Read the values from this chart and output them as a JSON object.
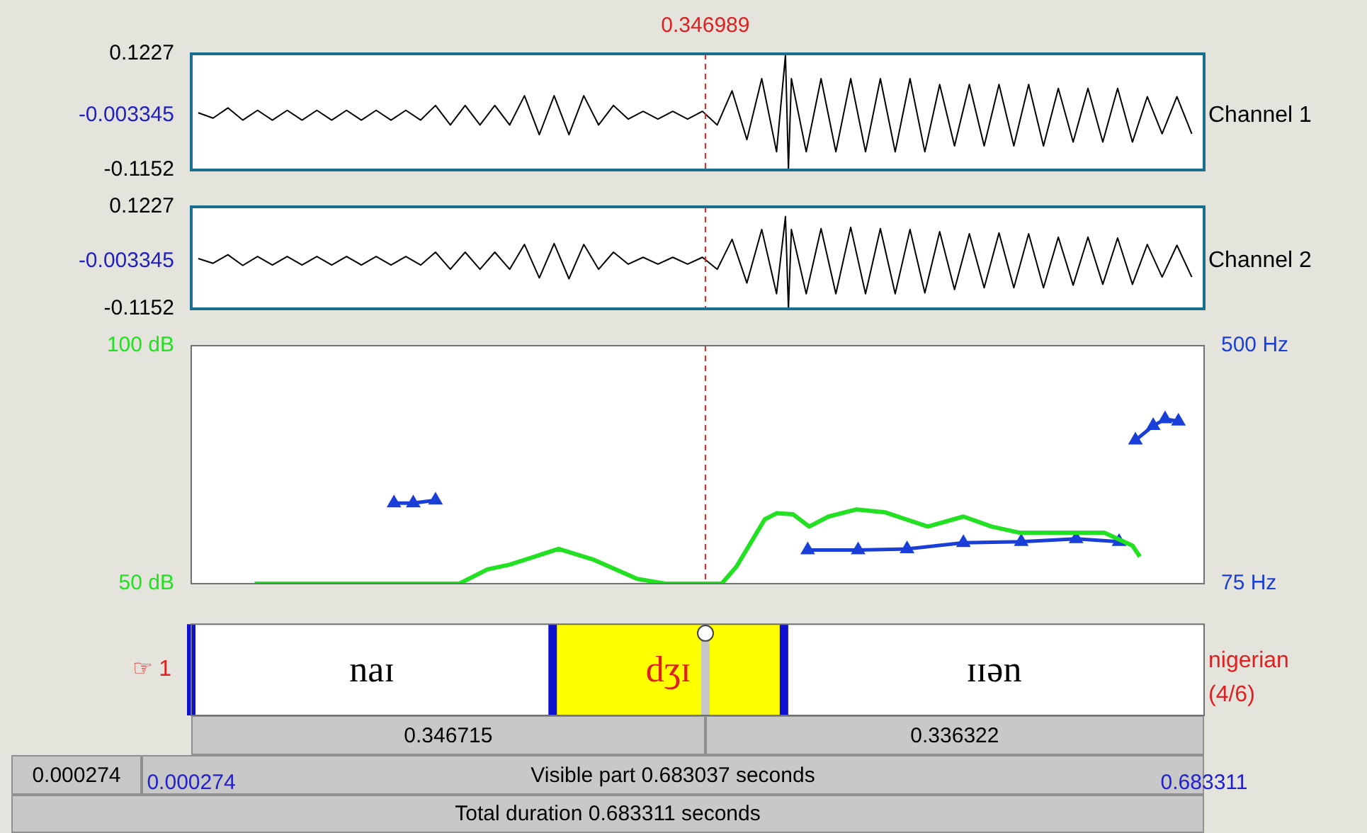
{
  "chart_data": [
    {
      "type": "line",
      "xlim": [
        0.000274,
        0.683311
      ],
      "ylim": [
        -0.1152,
        0.1227
      ],
      "yticks": [
        0.1227,
        -0.003345,
        -0.1152
      ],
      "tick_labels": "y",
      "ref_lines": [
        {
          "axis": "x",
          "value": 0.346989,
          "label": "0.346989",
          "color": "#e02020",
          "line_style": "dashed"
        }
      ],
      "series": [
        {
          "name": "Channel 1",
          "color": "#000000",
          "x": [
            0.005,
            0.015,
            0.025,
            0.035,
            0.045,
            0.055,
            0.065,
            0.075,
            0.085,
            0.095,
            0.105,
            0.115,
            0.125,
            0.135,
            0.145,
            0.155,
            0.165,
            0.175,
            0.185,
            0.195,
            0.205,
            0.215,
            0.225,
            0.235,
            0.245,
            0.255,
            0.265,
            0.275,
            0.285,
            0.295,
            0.305,
            0.315,
            0.325,
            0.335,
            0.345,
            0.355,
            0.365,
            0.375,
            0.385,
            0.395,
            0.401,
            0.403,
            0.405,
            0.415,
            0.425,
            0.435,
            0.445,
            0.455,
            0.465,
            0.475,
            0.485,
            0.495,
            0.505,
            0.515,
            0.525,
            0.535,
            0.545,
            0.555,
            0.565,
            0.575,
            0.585,
            0.595,
            0.605,
            0.615,
            0.625,
            0.635,
            0.645,
            0.655,
            0.665,
            0.675
          ],
          "values": [
            0.002,
            -0.009,
            0.012,
            -0.013,
            0.007,
            -0.013,
            0.007,
            -0.013,
            0.007,
            -0.013,
            0.007,
            -0.013,
            0.007,
            -0.013,
            0.007,
            -0.013,
            0.017,
            -0.023,
            0.017,
            -0.023,
            0.017,
            -0.023,
            0.037,
            -0.043,
            0.037,
            -0.043,
            0.037,
            -0.023,
            0.017,
            -0.011,
            0.005,
            -0.011,
            0.005,
            -0.011,
            0.005,
            -0.023,
            0.047,
            -0.053,
            0.072,
            -0.078,
            0.12,
            -0.113,
            0.072,
            -0.078,
            0.072,
            -0.078,
            0.072,
            -0.078,
            0.072,
            -0.078,
            0.072,
            -0.078,
            0.06,
            -0.066,
            0.06,
            -0.066,
            0.06,
            -0.066,
            0.06,
            -0.066,
            0.052,
            -0.058,
            0.052,
            -0.058,
            0.052,
            -0.058,
            0.035,
            -0.041,
            0.035,
            -0.041
          ]
        }
      ]
    },
    {
      "type": "line",
      "xlim": [
        0.000274,
        0.683311
      ],
      "ylim": [
        -0.1152,
        0.1227
      ],
      "yticks": [
        0.1227,
        -0.003345,
        -0.1152
      ],
      "tick_labels": "y",
      "ref_lines": [
        {
          "axis": "x",
          "value": 0.346989,
          "color": "#e02020",
          "line_style": "dashed"
        }
      ],
      "series": [
        {
          "name": "Channel 2",
          "color": "#000000",
          "x": [
            0.005,
            0.015,
            0.025,
            0.035,
            0.045,
            0.055,
            0.065,
            0.075,
            0.085,
            0.095,
            0.105,
            0.115,
            0.125,
            0.135,
            0.145,
            0.155,
            0.165,
            0.175,
            0.185,
            0.195,
            0.205,
            0.215,
            0.225,
            0.235,
            0.245,
            0.255,
            0.265,
            0.275,
            0.285,
            0.295,
            0.305,
            0.315,
            0.325,
            0.335,
            0.345,
            0.355,
            0.365,
            0.375,
            0.385,
            0.395,
            0.401,
            0.403,
            0.405,
            0.415,
            0.425,
            0.435,
            0.445,
            0.455,
            0.465,
            0.475,
            0.485,
            0.495,
            0.505,
            0.515,
            0.525,
            0.535,
            0.545,
            0.555,
            0.565,
            0.575,
            0.585,
            0.595,
            0.605,
            0.615,
            0.625,
            0.635,
            0.645,
            0.655,
            0.665,
            0.675
          ],
          "values": [
            0.002,
            -0.009,
            0.011,
            -0.014,
            0.007,
            -0.013,
            0.007,
            -0.013,
            0.007,
            -0.013,
            0.007,
            -0.013,
            0.007,
            -0.013,
            0.007,
            -0.013,
            0.017,
            -0.023,
            0.017,
            -0.023,
            0.017,
            -0.023,
            0.035,
            -0.043,
            0.037,
            -0.045,
            0.035,
            -0.023,
            0.017,
            -0.011,
            0.005,
            -0.011,
            0.005,
            -0.011,
            0.005,
            -0.023,
            0.047,
            -0.055,
            0.07,
            -0.08,
            0.1,
            -0.115,
            0.07,
            -0.08,
            0.072,
            -0.08,
            0.075,
            -0.08,
            0.072,
            -0.08,
            0.07,
            -0.078,
            0.065,
            -0.07,
            0.06,
            -0.066,
            0.062,
            -0.066,
            0.06,
            -0.066,
            0.052,
            -0.06,
            0.052,
            -0.058,
            0.05,
            -0.058,
            0.035,
            -0.041,
            0.033,
            -0.041
          ]
        }
      ]
    },
    {
      "type": "line",
      "xlim": [
        0.000274,
        0.683311
      ],
      "ylim": [
        50,
        100
      ],
      "yticks": [
        {
          "value": 100,
          "label": "100 dB"
        },
        {
          "value": 50,
          "label": "50 dB"
        }
      ],
      "y2lim": [
        75,
        500
      ],
      "y2ticks": [
        {
          "value": 500,
          "label": "500 Hz"
        },
        {
          "value": 75,
          "label": "75 Hz"
        }
      ],
      "tick_labels": "y",
      "ref_lines": [
        {
          "axis": "x",
          "value": 0.346989,
          "color": "#e02020",
          "line_style": "dashed"
        }
      ],
      "series": [
        {
          "color": "#22e022",
          "x": [
            0.043,
            0.1,
            0.181,
            0.2,
            0.215,
            0.248,
            0.272,
            0.301,
            0.32,
            0.358,
            0.368,
            0.387,
            0.395,
            0.406,
            0.417,
            0.43,
            0.449,
            0.468,
            0.497,
            0.521,
            0.54,
            0.559,
            0.616,
            0.635,
            0.64
          ],
          "values": [
            50,
            50,
            50,
            53,
            54,
            57.3,
            55,
            51,
            50,
            50,
            53.6,
            63.5,
            64.8,
            64.6,
            62,
            64.1,
            65.6,
            65,
            62,
            64.1,
            62,
            60.7,
            60.7,
            58,
            55.7
          ]
        },
        {
          "color": "#1a3fd8",
          "axis": "y2",
          "marker": "triangle",
          "x": [
            0.137,
            0.15,
            0.165,
            0.17,
            0.416,
            0.45,
            0.483,
            0.521,
            0.56,
            0.597,
            0.626,
            0.63,
            0.637,
            0.649,
            0.657,
            0.666
          ],
          "values": [
            219,
            219,
            224,
            null,
            135,
            135,
            137,
            148,
            150,
            155,
            150,
            null,
            331,
            357,
            369,
            365
          ]
        }
      ]
    },
    {
      "type": "bar",
      "orientation": "horizontal",
      "categories": [
        "☞ 1"
      ],
      "y2label": "nigerian (4/6)",
      "xlim": [
        0.000274,
        0.683311
      ],
      "xticks": [
        0.000274,
        0.683311
      ],
      "series": [
        {
          "color": "#ffff00",
          "values": [
            0.156
          ],
          "base": [
            0.244
          ]
        }
      ],
      "ref_lines": [
        {
          "axis": "x",
          "value": 0.000274,
          "color": "#1010d0"
        },
        {
          "axis": "x",
          "value": 0.244,
          "color": "#1010d0"
        },
        {
          "axis": "x",
          "value": 0.4,
          "color": "#1010d0"
        },
        {
          "axis": "x",
          "value": 0.346989,
          "color": "#c8c8c8"
        }
      ],
      "annotations": [
        "naɪ",
        "dʒɪ",
        "ɪɪən",
        "0.346715",
        "0.336322",
        "0.000274",
        "Visible part 0.683037 seconds",
        "Total duration 0.683311 seconds"
      ]
    }
  ]
}
